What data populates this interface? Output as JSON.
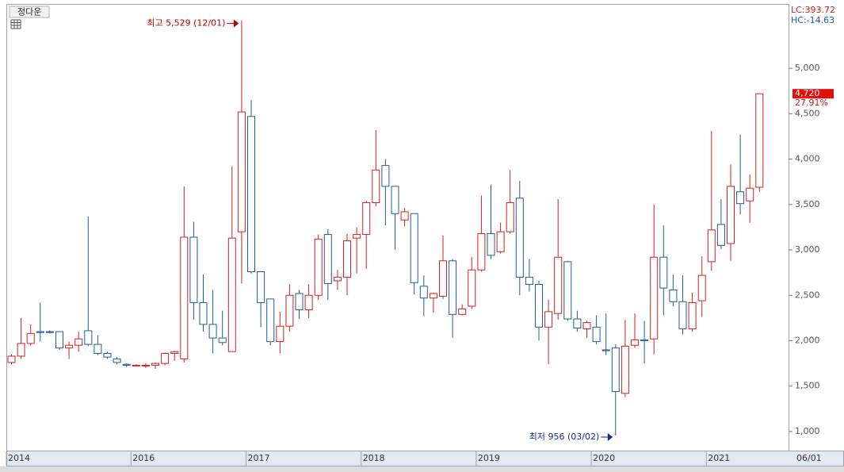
{
  "chart_data": {
    "type": "candlestick",
    "title": "정다운",
    "lc_label": "LC:393.72",
    "hc_label": "HC:-14.63",
    "last_label": "4,720",
    "change_label": "27.91%",
    "high_annotation": "최고 5,529 (12/01)",
    "low_annotation": "최저 956 (03/02)",
    "end_label": "06/01",
    "up_color": "#d22020",
    "down_color": "#1f5c99",
    "categories": [
      "2014",
      null,
      null,
      null,
      null,
      null,
      null,
      null,
      null,
      null,
      null,
      null,
      null,
      "2016",
      null,
      null,
      null,
      null,
      null,
      null,
      null,
      null,
      null,
      null,
      null,
      "2017",
      null,
      null,
      null,
      null,
      null,
      null,
      null,
      null,
      null,
      null,
      null,
      "2018",
      null,
      null,
      null,
      null,
      null,
      null,
      null,
      null,
      null,
      null,
      null,
      "2019",
      null,
      null,
      null,
      null,
      null,
      null,
      null,
      null,
      null,
      null,
      null,
      "2020",
      null,
      null,
      null,
      null,
      null,
      null,
      null,
      null,
      null,
      null,
      null,
      "2021",
      null,
      null,
      null,
      null,
      null
    ],
    "open": [
      1760,
      1830,
      1970,
      2100,
      2100,
      2100,
      1920,
      1950,
      2110,
      1960,
      1860,
      1800,
      1740,
      1730,
      1730,
      1730,
      1750,
      1860,
      1800,
      3140,
      2420,
      2180,
      2030,
      1880,
      3200,
      4470,
      2760,
      2460,
      1990,
      2160,
      2520,
      2340,
      2500,
      3170,
      2660,
      2700,
      3130,
      3170,
      3520,
      3930,
      3700,
      3330,
      3400,
      2600,
      2470,
      2490,
      2880,
      2290,
      2380,
      2780,
      3180,
      2980,
      3200,
      3570,
      2700,
      2620,
      2150,
      2300,
      2870,
      2240,
      2130,
      2150,
      1900,
      1920,
      1420,
      1950,
      2010,
      2020,
      2920,
      2560,
      2430,
      2130,
      2440,
      2870,
      3280,
      3070,
      3640,
      3540,
      3690
    ],
    "high": [
      1850,
      2250,
      2180,
      2420,
      2110,
      2100,
      1990,
      2100,
      3370,
      2060,
      1880,
      1820,
      1750,
      1740,
      1750,
      1760,
      1870,
      1890,
      3700,
      3310,
      2730,
      2560,
      2330,
      3920,
      5529,
      4650,
      2740,
      2460,
      2320,
      2620,
      2560,
      2620,
      3170,
      3230,
      2780,
      3180,
      3250,
      3540,
      4320,
      4000,
      3700,
      3460,
      3400,
      2720,
      2530,
      3160,
      2900,
      2400,
      2920,
      3600,
      3720,
      3300,
      3880,
      3760,
      2900,
      2660,
      2450,
      3560,
      2880,
      2330,
      2220,
      2280,
      2300,
      1960,
      2230,
      2300,
      2220,
      3500,
      3270,
      2730,
      2720,
      2530,
      2930,
      4310,
      3560,
      3940,
      4270,
      3830,
      4720
    ],
    "low": [
      1740,
      1800,
      1950,
      1990,
      2080,
      1900,
      1800,
      1880,
      1940,
      1840,
      1800,
      1740,
      1710,
      1720,
      1700,
      1690,
      1730,
      1780,
      1760,
      2230,
      2100,
      1860,
      1950,
      1880,
      2630,
      2740,
      2150,
      1950,
      1860,
      2100,
      2240,
      2250,
      2450,
      2450,
      2560,
      2500,
      2740,
      2790,
      3480,
      3270,
      3000,
      3260,
      2510,
      2270,
      2310,
      2460,
      2030,
      2280,
      2350,
      2760,
      2900,
      2960,
      3180,
      2500,
      2540,
      2000,
      1740,
      2230,
      2220,
      2100,
      2030,
      1960,
      1840,
      956,
      1380,
      1920,
      1750,
      1850,
      2280,
      2380,
      2070,
      2100,
      2260,
      2770,
      3010,
      2880,
      3390,
      3300,
      3640
    ],
    "close": [
      1830,
      1970,
      2080,
      2090,
      2090,
      1920,
      1950,
      2020,
      1960,
      1860,
      1820,
      1760,
      1730,
      1730,
      1730,
      1750,
      1860,
      1880,
      3140,
      2420,
      2180,
      2030,
      1980,
      3130,
      4520,
      2760,
      2420,
      1990,
      2160,
      2500,
      2340,
      2500,
      3120,
      2630,
      2700,
      3100,
      3170,
      3520,
      3880,
      3700,
      3400,
      3420,
      2640,
      2470,
      2520,
      2880,
      2290,
      2350,
      2780,
      3180,
      2940,
      3200,
      3520,
      2700,
      2620,
      2150,
      2320,
      2920,
      2240,
      2140,
      2200,
      1990,
      1890,
      1440,
      1940,
      2010,
      2000,
      2920,
      2580,
      2430,
      2130,
      2420,
      2720,
      3220,
      3050,
      3700,
      3510,
      3680,
      4720
    ],
    "ylim": [
      790,
      5700
    ],
    "yticks": [
      {
        "value": 1000,
        "label": "1,000"
      },
      {
        "value": 1500,
        "label": "1,500"
      },
      {
        "value": 2000,
        "label": "2,000"
      },
      {
        "value": 2500,
        "label": "2,500"
      },
      {
        "value": 3000,
        "label": "3,000"
      },
      {
        "value": 3500,
        "label": "3,500"
      },
      {
        "value": 4000,
        "label": "4,000"
      },
      {
        "value": 4500,
        "label": "4,500"
      },
      {
        "value": 5000,
        "label": "5,000"
      }
    ],
    "grid": false
  }
}
